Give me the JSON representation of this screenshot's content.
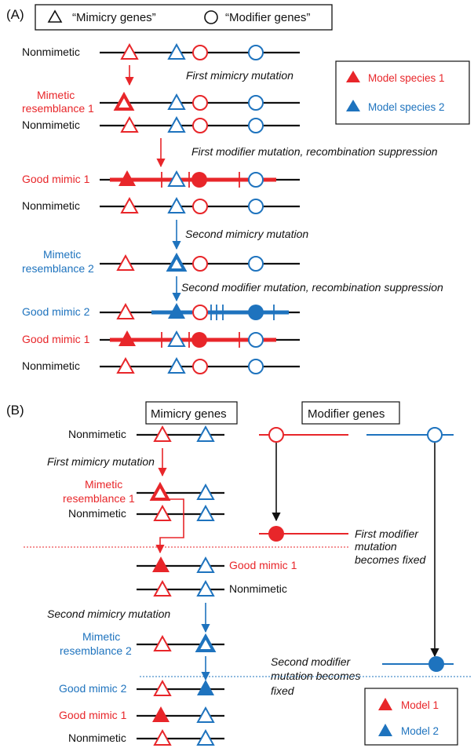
{
  "colors": {
    "red": "#e8262a",
    "blue": "#1e73be",
    "black": "#111111"
  },
  "panel_a": {
    "label": "(A)",
    "key": {
      "mimicry": "“Mimicry genes”",
      "modifier": "“Modifier genes”"
    },
    "legend": {
      "model1": "Model species 1",
      "model2": "Model species 2"
    },
    "labels": {
      "nonmimetic": "Nonmimetic",
      "mimetic_1_line1": "Mimetic",
      "mimetic_1_line2": "resemblance 1",
      "good_mimic_1": "Good mimic 1",
      "mimetic_2_line1": "Mimetic",
      "mimetic_2_line2": "resemblance 2",
      "good_mimic_2": "Good mimic 2"
    },
    "captions": {
      "first_mimicry": "First mimicry mutation",
      "first_modifier": "First modifier mutation, recombination suppression",
      "second_mimicry": "Second mimicry mutation",
      "second_modifier": "Second modifier mutation, recombination suppression"
    }
  },
  "panel_b": {
    "label": "(B)",
    "headers": {
      "mimicry": "Mimicry genes",
      "modifier": "Modifier genes"
    },
    "legend": {
      "model1": "Model 1",
      "model2": "Model 2"
    },
    "labels": {
      "nonmimetic": "Nonmimetic",
      "mimetic_1_line1": "Mimetic",
      "mimetic_1_line2": "resemblance 1",
      "good_mimic_1": "Good mimic 1",
      "mimetic_2_line1": "Mimetic",
      "mimetic_2_line2": "resemblance 2",
      "good_mimic_2": "Good mimic 2"
    },
    "captions": {
      "first_mimicry": "First mimicry mutation",
      "second_mimicry": "Second mimicry mutation",
      "first_modifier_1": "First modifier",
      "first_modifier_2": "mutation",
      "first_modifier_3": "becomes fixed",
      "second_modifier_1": "Second modifier",
      "second_modifier_2": "mutation becomes",
      "second_modifier_3": "fixed"
    }
  }
}
